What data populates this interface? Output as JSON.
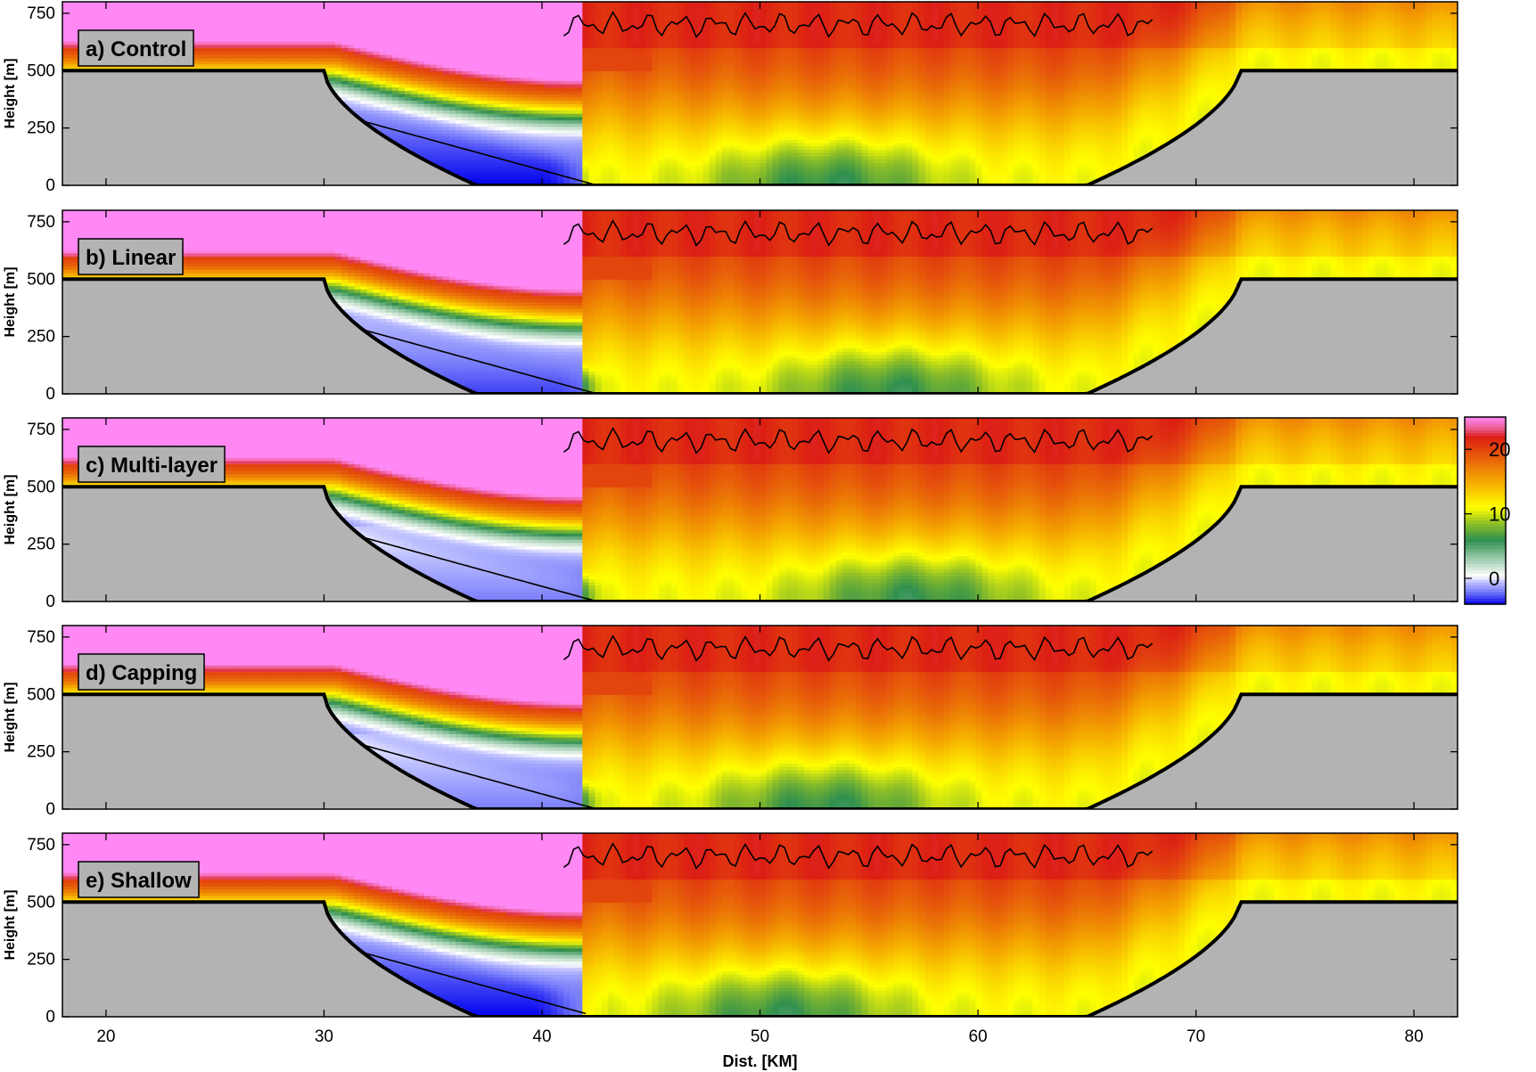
{
  "chart_data": {
    "type": "heatmap",
    "xlabel": "Dist. [KM]",
    "ylabel": "Height [m]",
    "xlim": [
      18,
      82
    ],
    "ylim": [
      0,
      800
    ],
    "xticks": [
      20,
      30,
      40,
      50,
      60,
      70,
      80
    ],
    "yticks": [
      0,
      250,
      500,
      750
    ],
    "colorbar": {
      "range": [
        -4,
        25
      ],
      "ticks": [
        0,
        10,
        20
      ],
      "tick_labels": [
        "0",
        "10",
        "20"
      ]
    },
    "colors": {
      "terrain": "#b3b3b3",
      "scale": [
        "#0000ee",
        "#b7b8ff",
        "#ffffff",
        "#2f8f4f",
        "#ffff00",
        "#f5a500",
        "#e02a14",
        "#ff88f4"
      ]
    },
    "terrain": {
      "plateau_height": 500,
      "valley_floor": 0,
      "left_plateau_edge": 30,
      "left_valley_floor_start": 37,
      "right_valley_floor_end": 65,
      "right_plateau_edge": 72
    },
    "panels": [
      {
        "id": "control",
        "label": "a) Control",
        "inversion_height": 580,
        "pool": {
          "x_end": 42.5,
          "min": -4
        },
        "green_center": 53
      },
      {
        "id": "linear",
        "label": "b) Linear",
        "inversion_height": 575,
        "pool": {
          "x_end": 43,
          "min": -3
        },
        "green_center": 56
      },
      {
        "id": "multilayer",
        "label": "c) Multi-layer",
        "inversion_height": 580,
        "pool": {
          "x_end": 43,
          "min": -2
        },
        "green_center": 57
      },
      {
        "id": "capping",
        "label": "d) Capping",
        "inversion_height": 585,
        "pool": {
          "x_end": 43,
          "min": -2
        },
        "green_center": 53
      },
      {
        "id": "shallow",
        "label": "e) Shallow",
        "inversion_height": 580,
        "pool": {
          "x_end": 42,
          "min": -4
        },
        "green_center": 51
      }
    ]
  }
}
